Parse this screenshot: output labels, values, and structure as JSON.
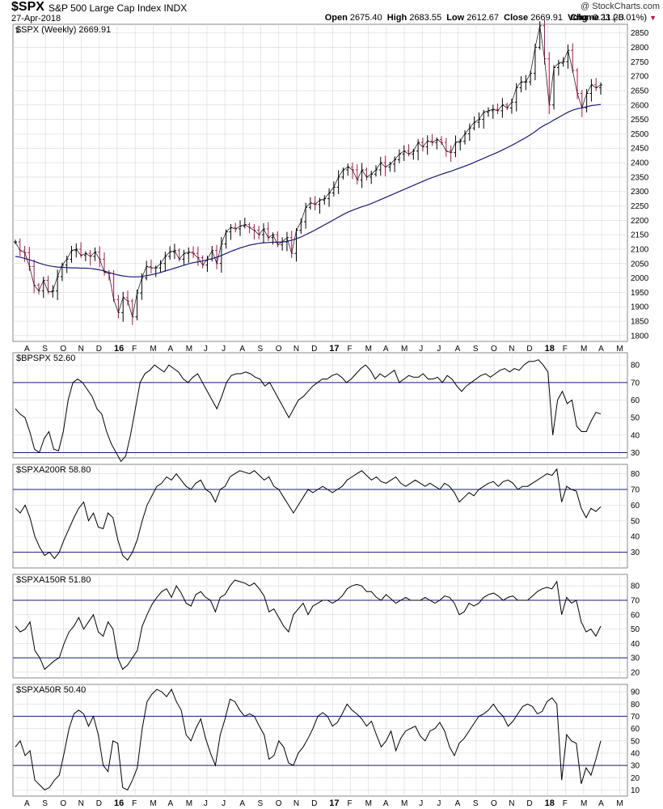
{
  "header": {
    "symbol": "$SPX",
    "full_name": "S&P 500 Large Cap Index  INDX",
    "date": "27-Apr-2018",
    "copyright": "@ StockCharts.com",
    "open_label": "Open",
    "open": "2675.40",
    "high_label": "High",
    "high": "2683.55",
    "low_label": "Low",
    "low": "2612.67",
    "close_label": "Close",
    "close": "2669.91",
    "volume_label": "Volume",
    "volume": "11.2B",
    "chg_label": "Chg",
    "chg": "-0.23 (-0.01%)"
  },
  "colors": {
    "ma_line": "#1b1b7a",
    "down_bar": "#b0154f",
    "up_bar": "#000000",
    "ref_line": "#1b1b7a",
    "grid": "#dddddd"
  },
  "x_axis": {
    "months": [
      "A",
      "S",
      "O",
      "N",
      "D",
      "16",
      "F",
      "M",
      "A",
      "M",
      "J",
      "J",
      "A",
      "S",
      "O",
      "N",
      "D",
      "17",
      "F",
      "M",
      "A",
      "M",
      "J",
      "J",
      "A",
      "S",
      "O",
      "N",
      "D",
      "18",
      "F",
      "M",
      "A",
      "M"
    ],
    "bold": [
      "16",
      "17",
      "18"
    ]
  },
  "chart_data": [
    {
      "type": "ohlc",
      "legend": "$SPX (Weekly) 2669.91",
      "ylim": [
        1780,
        2880
      ],
      "yticks": [
        1800,
        1850,
        1900,
        1950,
        2000,
        2050,
        2100,
        2150,
        2200,
        2250,
        2300,
        2350,
        2400,
        2450,
        2500,
        2550,
        2600,
        2650,
        2700,
        2750,
        2800,
        2850
      ],
      "close": [
        2125,
        2095,
        2088,
        2040,
        1975,
        1955,
        1992,
        1952,
        1955,
        2005,
        2045,
        2065,
        2095,
        2100,
        2078,
        2085,
        2075,
        2090,
        2065,
        2020,
        2015,
        1925,
        1880,
        1932,
        1920,
        1865,
        1948,
        2000,
        2040,
        2035,
        2035,
        2050,
        2075,
        2090,
        2095,
        2065,
        2085,
        2090,
        2085,
        2070,
        2045,
        2065,
        2095,
        2050,
        2118,
        2160,
        2175,
        2170,
        2180,
        2185,
        2175,
        2165,
        2150,
        2170,
        2140,
        2150,
        2115,
        2125,
        2140,
        2085,
        2165,
        2195,
        2245,
        2260,
        2255,
        2270,
        2275,
        2295,
        2315,
        2350,
        2375,
        2385,
        2375,
        2340,
        2375,
        2350,
        2360,
        2375,
        2400,
        2385,
        2395,
        2410,
        2430,
        2440,
        2430,
        2440,
        2470,
        2455,
        2475,
        2470,
        2480,
        2470,
        2440,
        2435,
        2470,
        2475,
        2500,
        2520,
        2540,
        2550,
        2575,
        2580,
        2585,
        2580,
        2600,
        2590,
        2610,
        2660,
        2680,
        2680,
        2710,
        2800,
        2875,
        2760,
        2600,
        2730,
        2745,
        2750,
        2790,
        2720,
        2640,
        2590,
        2640,
        2670,
        2660,
        2670
      ],
      "ma": [
        2075,
        2072,
        2068,
        2063,
        2058,
        2052,
        2047,
        2043,
        2040,
        2038,
        2037,
        2036,
        2035,
        2035,
        2034,
        2034,
        2033,
        2031,
        2028,
        2024,
        2019,
        2014,
        2010,
        2007,
        2005,
        2004,
        2004,
        2005,
        2008,
        2011,
        2015,
        2019,
        2024,
        2029,
        2034,
        2039,
        2044,
        2049,
        2053,
        2056,
        2059,
        2063,
        2067,
        2072,
        2078,
        2085,
        2092,
        2098,
        2104,
        2109,
        2114,
        2117,
        2120,
        2122,
        2123,
        2124,
        2124,
        2125,
        2127,
        2131,
        2136,
        2142,
        2150,
        2158,
        2166,
        2175,
        2184,
        2193,
        2202,
        2211,
        2220,
        2228,
        2235,
        2241,
        2247,
        2252,
        2258,
        2265,
        2272,
        2279,
        2286,
        2293,
        2300,
        2307,
        2314,
        2321,
        2328,
        2335,
        2342,
        2348,
        2354,
        2360,
        2365,
        2370,
        2376,
        2382,
        2388,
        2394,
        2401,
        2408,
        2415,
        2422,
        2429,
        2436,
        2444,
        2452,
        2460,
        2469,
        2478,
        2487,
        2497,
        2508,
        2520,
        2530,
        2538,
        2548,
        2557,
        2566,
        2575,
        2582,
        2587,
        2590,
        2594,
        2598,
        2600,
        2602
      ]
    },
    {
      "type": "line",
      "legend": "$BPSPX 52.60",
      "ylim": [
        27,
        87
      ],
      "yticks": [
        30,
        40,
        50,
        60,
        70,
        80
      ],
      "ref_lines": [
        70,
        30
      ],
      "values": [
        55,
        52,
        50,
        42,
        32,
        30,
        38,
        42,
        32,
        31,
        42,
        60,
        70,
        72,
        70,
        66,
        62,
        55,
        52,
        42,
        35,
        30,
        25,
        28,
        40,
        55,
        70,
        75,
        77,
        80,
        78,
        76,
        80,
        78,
        76,
        72,
        70,
        73,
        75,
        70,
        65,
        60,
        55,
        62,
        70,
        74,
        75,
        75,
        76,
        75,
        73,
        72,
        68,
        70,
        65,
        60,
        55,
        50,
        55,
        60,
        62,
        65,
        68,
        70,
        72,
        72,
        74,
        75,
        73,
        70,
        72,
        75,
        78,
        80,
        77,
        72,
        75,
        73,
        75,
        77,
        70,
        72,
        74,
        73,
        73,
        75,
        72,
        72,
        73,
        70,
        74,
        72,
        68,
        65,
        68,
        70,
        72,
        74,
        75,
        73,
        75,
        77,
        78,
        76,
        78,
        77,
        80,
        82,
        82,
        83,
        80,
        76,
        40,
        60,
        65,
        58,
        60,
        45,
        42,
        42,
        48,
        53,
        52
      ]
    },
    {
      "type": "line",
      "legend": "$SPXA200R 58.80",
      "ylim": [
        20,
        86
      ],
      "yticks": [
        30,
        40,
        50,
        60,
        70,
        80
      ],
      "ref_lines": [
        70,
        30
      ],
      "values": [
        58,
        55,
        60,
        52,
        40,
        33,
        28,
        30,
        26,
        30,
        38,
        45,
        52,
        58,
        62,
        50,
        55,
        46,
        45,
        55,
        52,
        38,
        28,
        25,
        30,
        38,
        50,
        60,
        66,
        72,
        74,
        78,
        76,
        80,
        76,
        72,
        70,
        74,
        76,
        70,
        68,
        62,
        70,
        72,
        78,
        80,
        82,
        81,
        80,
        82,
        79,
        76,
        78,
        72,
        70,
        65,
        60,
        55,
        60,
        65,
        70,
        68,
        70,
        72,
        70,
        68,
        70,
        72,
        76,
        78,
        80,
        82,
        79,
        76,
        78,
        75,
        74,
        76,
        78,
        74,
        72,
        74,
        76,
        74,
        72,
        74,
        72,
        70,
        74,
        72,
        68,
        62,
        65,
        68,
        66,
        70,
        72,
        74,
        75,
        72,
        75,
        76,
        74,
        70,
        72,
        72,
        74,
        76,
        78,
        80,
        79,
        83,
        62,
        72,
        70,
        69,
        58,
        52,
        58,
        56,
        59
      ]
    },
    {
      "type": "line",
      "legend": "$SPXA150R 51.80",
      "ylim": [
        16,
        88
      ],
      "yticks": [
        20,
        30,
        40,
        50,
        60,
        70,
        80
      ],
      "ref_lines": [
        70,
        30
      ],
      "values": [
        52,
        48,
        50,
        55,
        35,
        30,
        22,
        25,
        28,
        30,
        40,
        48,
        52,
        58,
        50,
        55,
        60,
        48,
        45,
        55,
        50,
        30,
        22,
        25,
        30,
        35,
        52,
        60,
        67,
        72,
        76,
        78,
        72,
        80,
        75,
        68,
        66,
        74,
        76,
        72,
        70,
        62,
        72,
        74,
        80,
        84,
        83,
        82,
        80,
        82,
        78,
        73,
        62,
        64,
        58,
        52,
        48,
        60,
        64,
        68,
        60,
        66,
        68,
        70,
        70,
        68,
        70,
        73,
        78,
        80,
        81,
        80,
        76,
        76,
        72,
        70,
        74,
        71,
        68,
        70,
        72,
        70,
        70,
        70,
        72,
        70,
        68,
        70,
        73,
        72,
        68,
        60,
        62,
        68,
        66,
        68,
        72,
        74,
        75,
        73,
        70,
        72,
        73,
        70,
        70,
        70,
        73,
        76,
        78,
        79,
        78,
        83,
        60,
        72,
        68,
        70,
        55,
        48,
        50,
        45,
        52
      ]
    },
    {
      "type": "line",
      "legend": "$SPXA50R 50.40",
      "ylim": [
        5,
        96
      ],
      "yticks": [
        10,
        20,
        30,
        40,
        50,
        60,
        70,
        80,
        90
      ],
      "ref_lines": [
        70,
        30
      ],
      "values": [
        45,
        50,
        38,
        42,
        18,
        14,
        10,
        12,
        18,
        22,
        40,
        60,
        72,
        75,
        72,
        62,
        70,
        55,
        30,
        25,
        50,
        48,
        12,
        10,
        18,
        28,
        60,
        82,
        88,
        92,
        90,
        86,
        92,
        82,
        75,
        55,
        50,
        60,
        68,
        52,
        40,
        30,
        55,
        68,
        84,
        82,
        75,
        70,
        72,
        70,
        62,
        55,
        35,
        38,
        50,
        45,
        32,
        30,
        40,
        45,
        52,
        60,
        70,
        73,
        70,
        62,
        65,
        72,
        80,
        75,
        72,
        68,
        62,
        66,
        55,
        45,
        50,
        58,
        42,
        52,
        58,
        60,
        62,
        54,
        50,
        58,
        60,
        65,
        58,
        45,
        38,
        48,
        52,
        58,
        64,
        70,
        72,
        75,
        80,
        74,
        70,
        62,
        66,
        72,
        78,
        80,
        78,
        72,
        74,
        82,
        85,
        80,
        18,
        55,
        50,
        48,
        15,
        28,
        22,
        35,
        50
      ]
    }
  ]
}
